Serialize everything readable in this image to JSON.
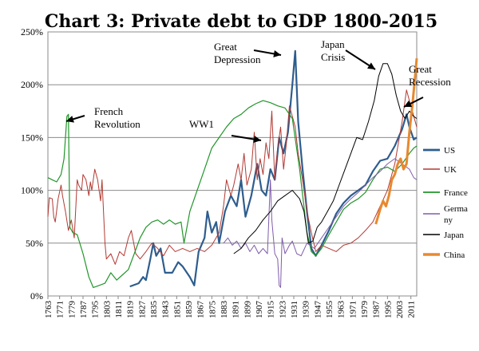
{
  "chart_data": {
    "type": "line",
    "title": "Chart 3: Private debt to GDP 1800-2015",
    "xlabel": "",
    "ylabel": "",
    "xlim": [
      1763,
      2015
    ],
    "ylim": [
      0,
      250
    ],
    "y_ticks": [
      0,
      50,
      100,
      150,
      200,
      250
    ],
    "y_tick_labels": [
      "0%",
      "50%",
      "100%",
      "150%",
      "200%",
      "250%"
    ],
    "x_ticks": [
      1763,
      1771,
      1779,
      1787,
      1795,
      1803,
      1811,
      1819,
      1827,
      1835,
      1843,
      1851,
      1859,
      1867,
      1875,
      1883,
      1891,
      1899,
      1907,
      1915,
      1923,
      1931,
      1939,
      1947,
      1955,
      1963,
      1971,
      1979,
      1987,
      1995,
      2003,
      2011
    ],
    "grid": "horizontal",
    "legend_position": "right",
    "series": [
      {
        "name": "US",
        "color": "#2e5d8e",
        "width": 2.2,
        "points": [
          [
            1819,
            9
          ],
          [
            1825,
            12
          ],
          [
            1828,
            18
          ],
          [
            1830,
            15
          ],
          [
            1833,
            35
          ],
          [
            1835,
            50
          ],
          [
            1837,
            38
          ],
          [
            1840,
            45
          ],
          [
            1843,
            22
          ],
          [
            1848,
            22
          ],
          [
            1852,
            32
          ],
          [
            1855,
            28
          ],
          [
            1860,
            18
          ],
          [
            1863,
            10
          ],
          [
            1866,
            42
          ],
          [
            1870,
            55
          ],
          [
            1872,
            80
          ],
          [
            1875,
            60
          ],
          [
            1878,
            70
          ],
          [
            1880,
            50
          ],
          [
            1884,
            80
          ],
          [
            1888,
            95
          ],
          [
            1892,
            85
          ],
          [
            1895,
            110
          ],
          [
            1898,
            75
          ],
          [
            1902,
            95
          ],
          [
            1906,
            125
          ],
          [
            1909,
            100
          ],
          [
            1912,
            95
          ],
          [
            1915,
            120
          ],
          [
            1918,
            110
          ],
          [
            1921,
            150
          ],
          [
            1924,
            135
          ],
          [
            1927,
            155
          ],
          [
            1930,
            200
          ],
          [
            1932,
            232
          ],
          [
            1934,
            165
          ],
          [
            1937,
            120
          ],
          [
            1940,
            80
          ],
          [
            1943,
            45
          ],
          [
            1946,
            38
          ],
          [
            1950,
            48
          ],
          [
            1955,
            62
          ],
          [
            1960,
            78
          ],
          [
            1965,
            88
          ],
          [
            1970,
            95
          ],
          [
            1975,
            100
          ],
          [
            1980,
            105
          ],
          [
            1985,
            118
          ],
          [
            1990,
            128
          ],
          [
            1995,
            130
          ],
          [
            2000,
            142
          ],
          [
            2005,
            158
          ],
          [
            2008,
            172
          ],
          [
            2010,
            160
          ],
          [
            2013,
            148
          ],
          [
            2015,
            150
          ]
        ]
      },
      {
        "name": "UK",
        "color": "#b23a33",
        "width": 1,
        "points": [
          [
            1763,
            75
          ],
          [
            1764,
            93
          ],
          [
            1766,
            92
          ],
          [
            1767,
            75
          ],
          [
            1768,
            70
          ],
          [
            1770,
            92
          ],
          [
            1772,
            105
          ],
          [
            1773,
            95
          ],
          [
            1775,
            80
          ],
          [
            1777,
            62
          ],
          [
            1779,
            72
          ],
          [
            1781,
            55
          ],
          [
            1783,
            110
          ],
          [
            1784,
            105
          ],
          [
            1786,
            100
          ],
          [
            1787,
            115
          ],
          [
            1789,
            110
          ],
          [
            1791,
            95
          ],
          [
            1792,
            108
          ],
          [
            1793,
            100
          ],
          [
            1795,
            120
          ],
          [
            1797,
            110
          ],
          [
            1799,
            90
          ],
          [
            1800,
            110
          ],
          [
            1802,
            50
          ],
          [
            1803,
            35
          ],
          [
            1806,
            40
          ],
          [
            1809,
            30
          ],
          [
            1812,
            42
          ],
          [
            1815,
            38
          ],
          [
            1818,
            55
          ],
          [
            1820,
            62
          ],
          [
            1823,
            40
          ],
          [
            1826,
            35
          ],
          [
            1830,
            42
          ],
          [
            1834,
            50
          ],
          [
            1838,
            45
          ],
          [
            1842,
            38
          ],
          [
            1846,
            48
          ],
          [
            1850,
            42
          ],
          [
            1855,
            45
          ],
          [
            1860,
            42
          ],
          [
            1865,
            45
          ],
          [
            1870,
            42
          ],
          [
            1875,
            48
          ],
          [
            1880,
            60
          ],
          [
            1883,
            85
          ],
          [
            1885,
            110
          ],
          [
            1888,
            95
          ],
          [
            1890,
            105
          ],
          [
            1893,
            125
          ],
          [
            1895,
            110
          ],
          [
            1897,
            135
          ],
          [
            1899,
            105
          ],
          [
            1902,
            120
          ],
          [
            1904,
            155
          ],
          [
            1906,
            110
          ],
          [
            1908,
            130
          ],
          [
            1910,
            115
          ],
          [
            1912,
            145
          ],
          [
            1914,
            130
          ],
          [
            1916,
            175
          ],
          [
            1918,
            110
          ],
          [
            1920,
            140
          ],
          [
            1922,
            160
          ],
          [
            1924,
            120
          ],
          [
            1926,
            145
          ],
          [
            1928,
            180
          ],
          [
            1930,
            170
          ],
          [
            1932,
            160
          ],
          [
            1934,
            135
          ],
          [
            1937,
            110
          ],
          [
            1940,
            80
          ],
          [
            1943,
            60
          ],
          [
            1946,
            42
          ],
          [
            1950,
            48
          ],
          [
            1955,
            45
          ],
          [
            1960,
            42
          ],
          [
            1965,
            48
          ],
          [
            1970,
            50
          ],
          [
            1975,
            55
          ],
          [
            1980,
            62
          ],
          [
            1985,
            70
          ],
          [
            1990,
            85
          ],
          [
            1995,
            100
          ],
          [
            2000,
            125
          ],
          [
            2005,
            165
          ],
          [
            2008,
            195
          ],
          [
            2010,
            185
          ],
          [
            2013,
            170
          ],
          [
            2015,
            160
          ]
        ]
      },
      {
        "name": "France",
        "color": "#22962b",
        "width": 1.2,
        "points": [
          [
            1763,
            112
          ],
          [
            1766,
            110
          ],
          [
            1769,
            108
          ],
          [
            1772,
            115
          ],
          [
            1774,
            130
          ],
          [
            1776,
            170
          ],
          [
            1777,
            172
          ],
          [
            1778,
            65
          ],
          [
            1780,
            60
          ],
          [
            1783,
            58
          ],
          [
            1787,
            40
          ],
          [
            1791,
            18
          ],
          [
            1794,
            8
          ],
          [
            1798,
            10
          ],
          [
            1802,
            12
          ],
          [
            1806,
            22
          ],
          [
            1810,
            15
          ],
          [
            1814,
            20
          ],
          [
            1818,
            25
          ],
          [
            1822,
            40
          ],
          [
            1826,
            55
          ],
          [
            1830,
            65
          ],
          [
            1834,
            70
          ],
          [
            1838,
            72
          ],
          [
            1842,
            68
          ],
          [
            1846,
            72
          ],
          [
            1850,
            68
          ],
          [
            1854,
            70
          ],
          [
            1856,
            50
          ],
          [
            1860,
            80
          ],
          [
            1865,
            100
          ],
          [
            1870,
            120
          ],
          [
            1875,
            140
          ],
          [
            1880,
            150
          ],
          [
            1885,
            160
          ],
          [
            1890,
            168
          ],
          [
            1895,
            172
          ],
          [
            1900,
            178
          ],
          [
            1905,
            182
          ],
          [
            1910,
            185
          ],
          [
            1915,
            183
          ],
          [
            1920,
            180
          ],
          [
            1925,
            178
          ],
          [
            1930,
            168
          ],
          [
            1935,
            120
          ],
          [
            1940,
            60
          ],
          [
            1943,
            42
          ],
          [
            1946,
            38
          ],
          [
            1950,
            45
          ],
          [
            1955,
            58
          ],
          [
            1960,
            70
          ],
          [
            1965,
            82
          ],
          [
            1970,
            88
          ],
          [
            1975,
            92
          ],
          [
            1980,
            98
          ],
          [
            1985,
            110
          ],
          [
            1990,
            120
          ],
          [
            1995,
            122
          ],
          [
            2000,
            118
          ],
          [
            2005,
            125
          ],
          [
            2010,
            135
          ],
          [
            2013,
            140
          ],
          [
            2015,
            142
          ]
        ]
      },
      {
        "name": "Germany",
        "color": "#7e5cab",
        "width": 1,
        "points": [
          [
            1883,
            50
          ],
          [
            1886,
            55
          ],
          [
            1889,
            48
          ],
          [
            1892,
            52
          ],
          [
            1895,
            45
          ],
          [
            1898,
            50
          ],
          [
            1901,
            42
          ],
          [
            1904,
            48
          ],
          [
            1907,
            40
          ],
          [
            1910,
            45
          ],
          [
            1913,
            40
          ],
          [
            1915,
            110
          ],
          [
            1916,
            72
          ],
          [
            1918,
            40
          ],
          [
            1920,
            35
          ],
          [
            1921,
            10
          ],
          [
            1922,
            8
          ],
          [
            1923,
            55
          ],
          [
            1925,
            40
          ],
          [
            1928,
            48
          ],
          [
            1930,
            52
          ],
          [
            1933,
            40
          ],
          [
            1936,
            38
          ],
          [
            1940,
            50
          ],
          [
            1945,
            45
          ],
          [
            1950,
            55
          ],
          [
            1955,
            65
          ],
          [
            1960,
            75
          ],
          [
            1965,
            85
          ],
          [
            1970,
            92
          ],
          [
            1975,
            98
          ],
          [
            1980,
            105
          ],
          [
            1985,
            112
          ],
          [
            1990,
            118
          ],
          [
            1995,
            125
          ],
          [
            2000,
            130
          ],
          [
            2005,
            125
          ],
          [
            2010,
            120
          ],
          [
            2013,
            112
          ],
          [
            2015,
            110
          ]
        ]
      },
      {
        "name": "Japan",
        "color": "#000000",
        "width": 1,
        "points": [
          [
            1890,
            40
          ],
          [
            1895,
            45
          ],
          [
            1900,
            55
          ],
          [
            1905,
            62
          ],
          [
            1910,
            72
          ],
          [
            1915,
            80
          ],
          [
            1920,
            90
          ],
          [
            1925,
            95
          ],
          [
            1930,
            100
          ],
          [
            1935,
            92
          ],
          [
            1938,
            80
          ],
          [
            1941,
            50
          ],
          [
            1944,
            52
          ],
          [
            1947,
            65
          ],
          [
            1950,
            70
          ],
          [
            1954,
            80
          ],
          [
            1958,
            90
          ],
          [
            1962,
            105
          ],
          [
            1966,
            120
          ],
          [
            1970,
            135
          ],
          [
            1974,
            150
          ],
          [
            1978,
            148
          ],
          [
            1982,
            165
          ],
          [
            1986,
            185
          ],
          [
            1989,
            208
          ],
          [
            1992,
            220
          ],
          [
            1995,
            220
          ],
          [
            1998,
            210
          ],
          [
            2001,
            190
          ],
          [
            2004,
            175
          ],
          [
            2007,
            168
          ],
          [
            2010,
            175
          ],
          [
            2013,
            170
          ],
          [
            2015,
            168
          ]
        ]
      },
      {
        "name": "China",
        "color": "#e8892f",
        "width": 3,
        "points": [
          [
            1987,
            68
          ],
          [
            1990,
            82
          ],
          [
            1992,
            90
          ],
          [
            1994,
            85
          ],
          [
            1996,
            95
          ],
          [
            1998,
            110
          ],
          [
            2000,
            115
          ],
          [
            2002,
            125
          ],
          [
            2004,
            130
          ],
          [
            2006,
            120
          ],
          [
            2008,
            125
          ],
          [
            2010,
            155
          ],
          [
            2012,
            180
          ],
          [
            2014,
            210
          ],
          [
            2015,
            225
          ]
        ]
      }
    ],
    "annotations": [
      {
        "lines": [
          "French",
          "Revolution"
        ],
        "arrow_to": [
          1778,
          170
        ]
      },
      {
        "lines": [
          "WW1"
        ],
        "arrow_to": [
          1916,
          150
        ]
      },
      {
        "lines": [
          "Great",
          "Depression"
        ],
        "arrow_to": [
          1932,
          230
        ]
      },
      {
        "lines": [
          "Japan",
          "Crisis"
        ],
        "arrow_to": [
          1991,
          218
        ]
      },
      {
        "lines": [
          "Great",
          "Recession"
        ],
        "arrow_to": [
          2010,
          178
        ]
      }
    ]
  }
}
